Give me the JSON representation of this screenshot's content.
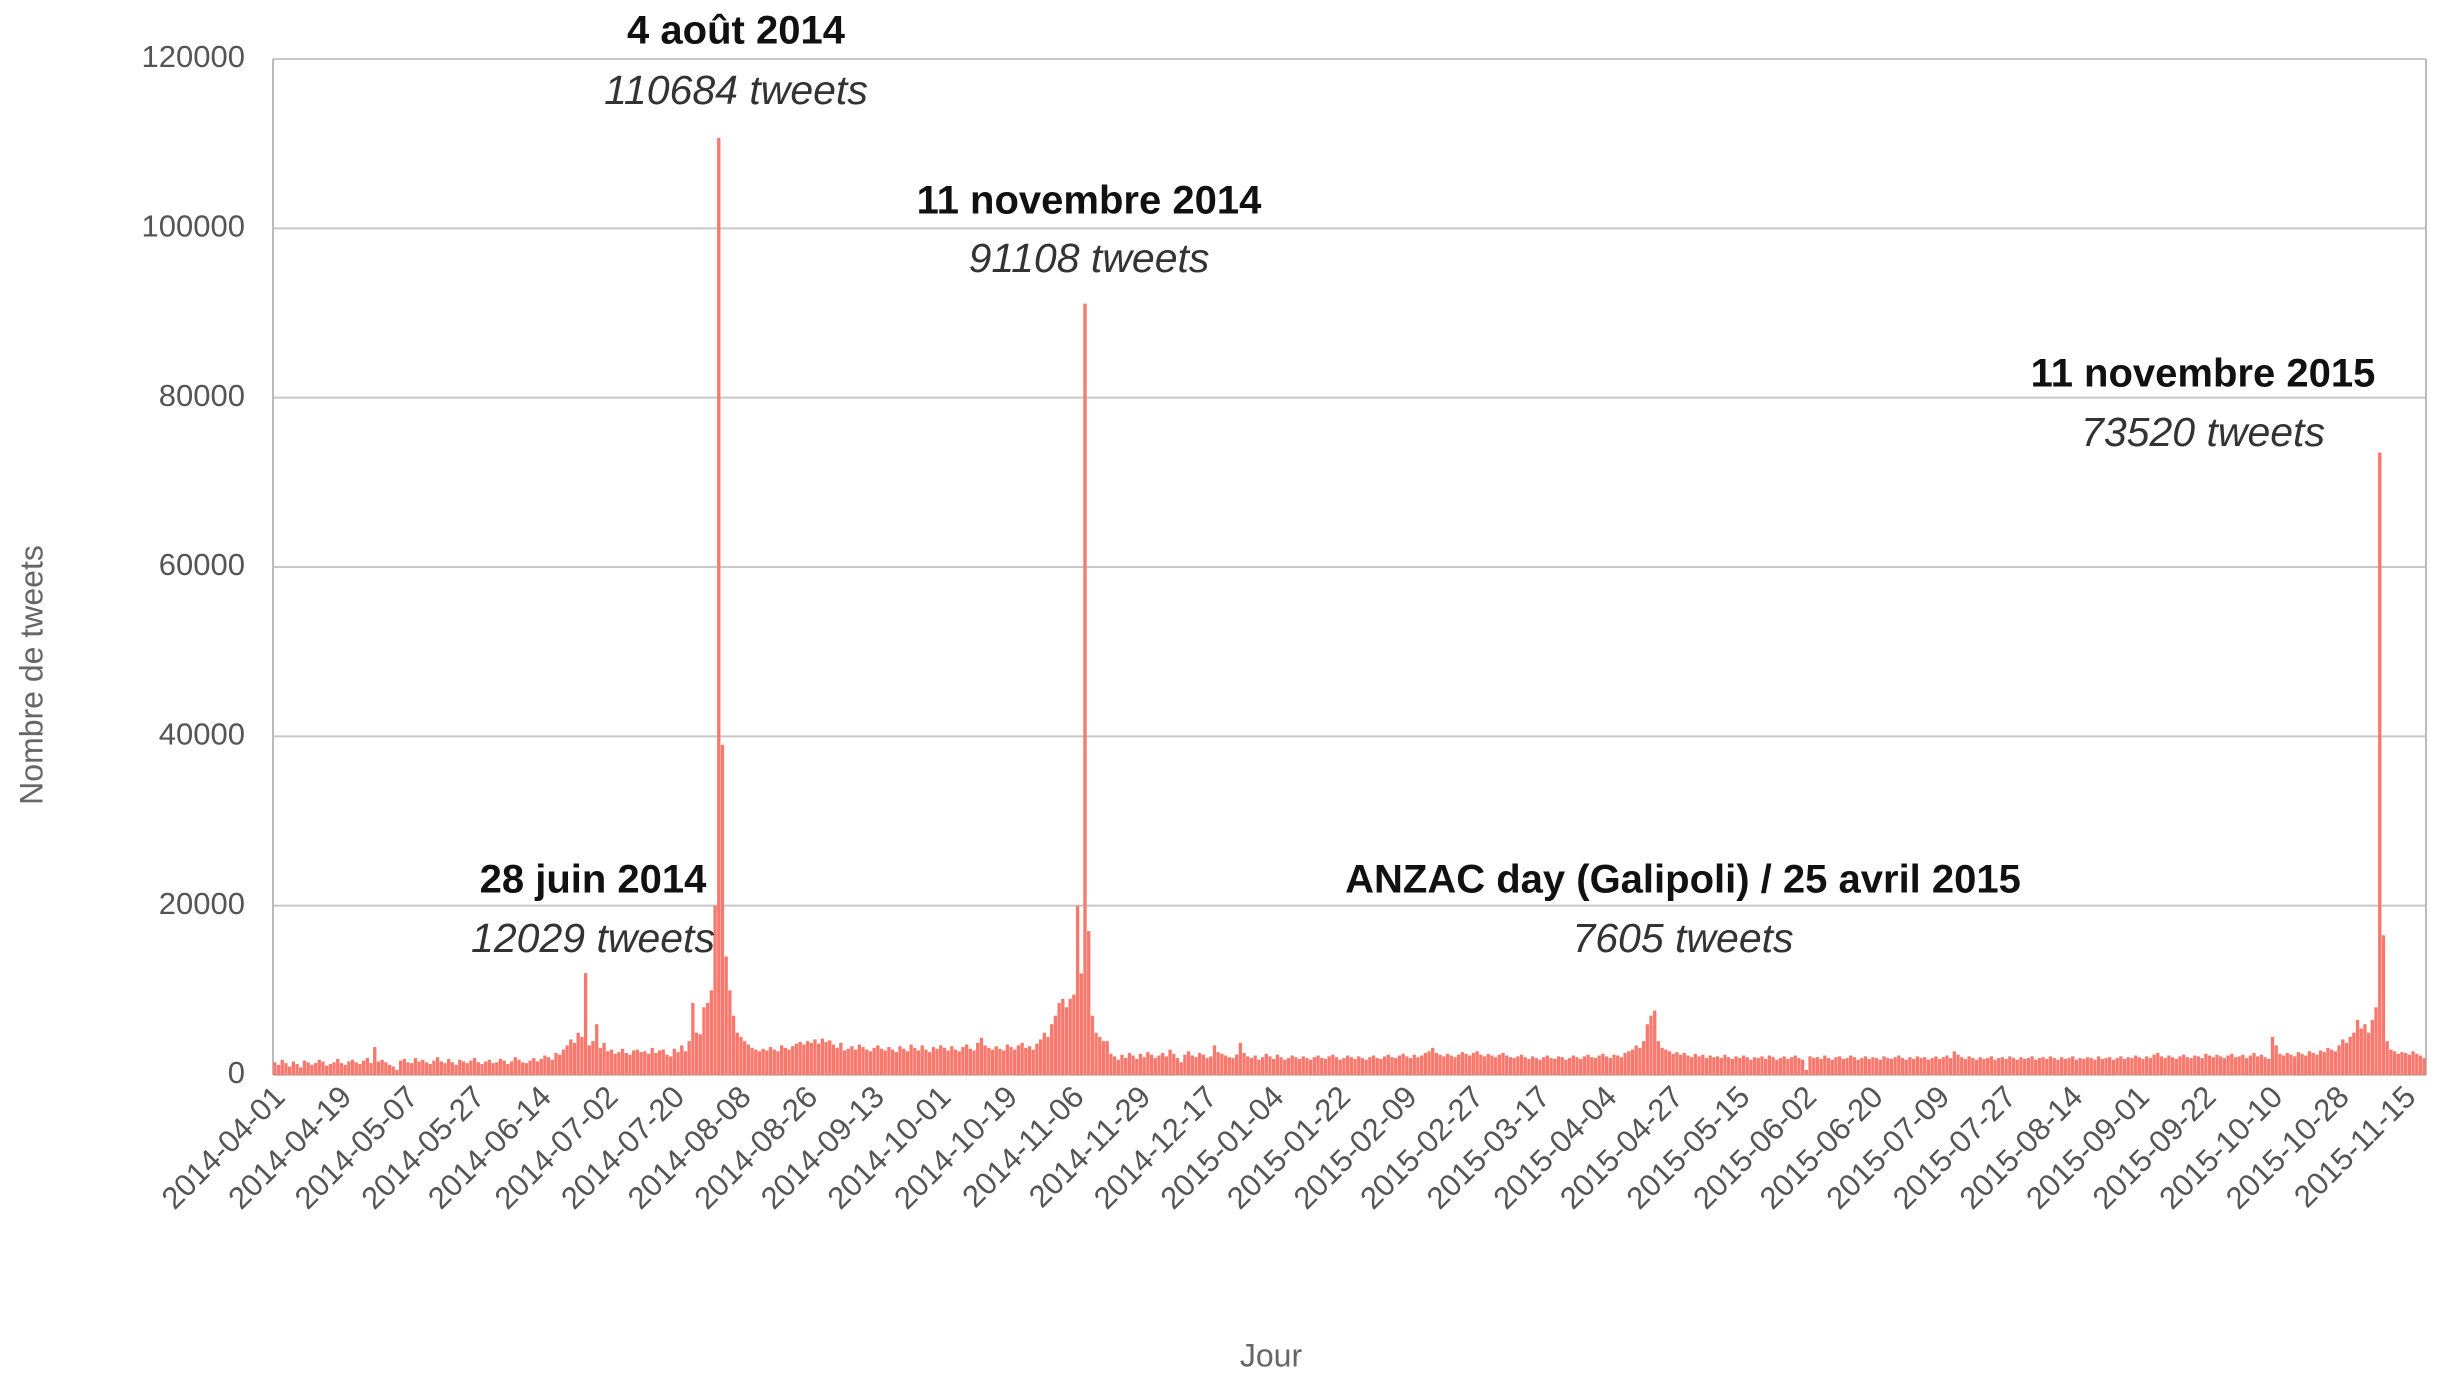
{
  "chart_data": {
    "type": "bar",
    "xlabel": "Jour",
    "ylabel": "Nombre de tweets",
    "color": "#f7796e",
    "grid": true,
    "ylim": [
      0,
      120000
    ],
    "yticks": [
      0,
      20000,
      40000,
      60000,
      80000,
      100000,
      120000
    ],
    "annotations": [
      {
        "title": "4 août 2014",
        "text": "110684 tweets"
      },
      {
        "title": "11 novembre 2014",
        "text": "91108 tweets"
      },
      {
        "title": "11 novembre 2015",
        "text": "73520 tweets"
      },
      {
        "title": "28 juin 2014",
        "text": "12029 tweets"
      },
      {
        "title": "ANZAC day (Galipoli) / 25 avril 2015",
        "text": "7605 tweets"
      }
    ],
    "categories": [
      "2014-04-01",
      null,
      null,
      null,
      null,
      null,
      null,
      null,
      null,
      null,
      null,
      null,
      null,
      null,
      null,
      null,
      null,
      null,
      "2014-04-19",
      null,
      null,
      null,
      null,
      null,
      null,
      null,
      null,
      null,
      null,
      null,
      null,
      null,
      null,
      null,
      null,
      null,
      "2014-05-07",
      null,
      null,
      null,
      null,
      null,
      null,
      null,
      null,
      null,
      null,
      null,
      null,
      null,
      null,
      null,
      null,
      null,
      "2014-05-27",
      null,
      null,
      null,
      null,
      null,
      null,
      null,
      null,
      null,
      null,
      null,
      null,
      null,
      null,
      null,
      null,
      null,
      "2014-06-14",
      null,
      null,
      null,
      null,
      null,
      null,
      null,
      null,
      null,
      null,
      null,
      null,
      null,
      null,
      null,
      null,
      null,
      "2014-07-02",
      null,
      null,
      null,
      null,
      null,
      null,
      null,
      null,
      null,
      null,
      null,
      null,
      null,
      null,
      null,
      null,
      null,
      "2014-07-20",
      null,
      null,
      null,
      null,
      null,
      null,
      null,
      null,
      null,
      null,
      null,
      null,
      null,
      null,
      null,
      null,
      null,
      "2014-08-08",
      null,
      null,
      null,
      null,
      null,
      null,
      null,
      null,
      null,
      null,
      null,
      null,
      null,
      null,
      null,
      null,
      null,
      "2014-08-26",
      null,
      null,
      null,
      null,
      null,
      null,
      null,
      null,
      null,
      null,
      null,
      null,
      null,
      null,
      null,
      null,
      null,
      "2014-09-13",
      null,
      null,
      null,
      null,
      null,
      null,
      null,
      null,
      null,
      null,
      null,
      null,
      null,
      null,
      null,
      null,
      null,
      "2014-10-01",
      null,
      null,
      null,
      null,
      null,
      null,
      null,
      null,
      null,
      null,
      null,
      null,
      null,
      null,
      null,
      null,
      null,
      "2014-10-19",
      null,
      null,
      null,
      null,
      null,
      null,
      null,
      null,
      null,
      null,
      null,
      null,
      null,
      null,
      null,
      null,
      null,
      "2014-11-06",
      null,
      null,
      null,
      null,
      null,
      null,
      null,
      null,
      null,
      null,
      null,
      null,
      null,
      null,
      null,
      null,
      null,
      "2014-11-29",
      null,
      null,
      null,
      null,
      null,
      null,
      null,
      null,
      null,
      null,
      null,
      null,
      null,
      null,
      null,
      null,
      null,
      "2014-12-17",
      null,
      null,
      null,
      null,
      null,
      null,
      null,
      null,
      null,
      null,
      null,
      null,
      null,
      null,
      null,
      null,
      null,
      "2015-01-04",
      null,
      null,
      null,
      null,
      null,
      null,
      null,
      null,
      null,
      null,
      null,
      null,
      null,
      null,
      null,
      null,
      null,
      "2015-01-22",
      null,
      null,
      null,
      null,
      null,
      null,
      null,
      null,
      null,
      null,
      null,
      null,
      null,
      null,
      null,
      null,
      null,
      "2015-02-09",
      null,
      null,
      null,
      null,
      null,
      null,
      null,
      null,
      null,
      null,
      null,
      null,
      null,
      null,
      null,
      null,
      null,
      "2015-02-27",
      null,
      null,
      null,
      null,
      null,
      null,
      null,
      null,
      null,
      null,
      null,
      null,
      null,
      null,
      null,
      null,
      null,
      "2015-03-17",
      null,
      null,
      null,
      null,
      null,
      null,
      null,
      null,
      null,
      null,
      null,
      null,
      null,
      null,
      null,
      null,
      null,
      "2015-04-04",
      null,
      null,
      null,
      null,
      null,
      null,
      null,
      null,
      null,
      null,
      null,
      null,
      null,
      null,
      null,
      null,
      null,
      "2015-04-27",
      null,
      null,
      null,
      null,
      null,
      null,
      null,
      null,
      null,
      null,
      null,
      null,
      null,
      null,
      null,
      null,
      null,
      "2015-05-15",
      null,
      null,
      null,
      null,
      null,
      null,
      null,
      null,
      null,
      null,
      null,
      null,
      null,
      null,
      null,
      null,
      null,
      "2015-06-02",
      null,
      null,
      null,
      null,
      null,
      null,
      null,
      null,
      null,
      null,
      null,
      null,
      null,
      null,
      null,
      null,
      null,
      "2015-06-20",
      null,
      null,
      null,
      null,
      null,
      null,
      null,
      null,
      null,
      null,
      null,
      null,
      null,
      null,
      null,
      null,
      null,
      "2015-07-09",
      null,
      null,
      null,
      null,
      null,
      null,
      null,
      null,
      null,
      null,
      null,
      null,
      null,
      null,
      null,
      null,
      null,
      "2015-07-27",
      null,
      null,
      null,
      null,
      null,
      null,
      null,
      null,
      null,
      null,
      null,
      null,
      null,
      null,
      null,
      null,
      null,
      "2015-08-14",
      null,
      null,
      null,
      null,
      null,
      null,
      null,
      null,
      null,
      null,
      null,
      null,
      null,
      null,
      null,
      null,
      null,
      "2015-09-01",
      null,
      null,
      null,
      null,
      null,
      null,
      null,
      null,
      null,
      null,
      null,
      null,
      null,
      null,
      null,
      null,
      null,
      "2015-09-22",
      null,
      null,
      null,
      null,
      null,
      null,
      null,
      null,
      null,
      null,
      null,
      null,
      null,
      null,
      null,
      null,
      null,
      "2015-10-10",
      null,
      null,
      null,
      null,
      null,
      null,
      null,
      null,
      null,
      null,
      null,
      null,
      null,
      null,
      null,
      null,
      null,
      "2015-10-28",
      null,
      null,
      null,
      null,
      null,
      null,
      null,
      null,
      null,
      null,
      null,
      null,
      null,
      null,
      null,
      null,
      null,
      "2015-11-15",
      null,
      null,
      null,
      null,
      null
    ],
    "values": [
      1500,
      1200,
      1800,
      1400,
      1000,
      1600,
      1300,
      900,
      1700,
      1500,
      1200,
      1400,
      1800,
      1600,
      1100,
      1300,
      1500,
      1900,
      1400,
      1200,
      1600,
      1800,
      1500,
      1300,
      1700,
      2000,
      1400,
      3300,
      1600,
      1800,
      1500,
      1200,
      1000,
      600,
      1700,
      1900,
      1500,
      1400,
      2000,
      1600,
      1800,
      1500,
      1300,
      1700,
      2100,
      1600,
      1400,
      1900,
      1500,
      1200,
      1800,
      1600,
      1400,
      1700,
      2000,
      1500,
      1300,
      1600,
      1800,
      1400,
      1500,
      1900,
      1700,
      1300,
      1600,
      2100,
      1800,
      1500,
      1400,
      1700,
      2000,
      1600,
      1900,
      2300,
      2100,
      1800,
      2600,
      2400,
      3000,
      3500,
      4200,
      3800,
      5000,
      4500,
      12029,
      3500,
      4000,
      6000,
      3200,
      3800,
      2800,
      3000,
      2500,
      2700,
      3100,
      2600,
      2400,
      2900,
      3000,
      2700,
      2800,
      2500,
      3200,
      2600,
      2900,
      3000,
      2400,
      2200,
      3100,
      2700,
      3500,
      2800,
      4000,
      8500,
      5000,
      4800,
      8000,
      8500,
      10000,
      20000,
      110684,
      39000,
      14000,
      10000,
      7000,
      5000,
      4500,
      4000,
      3600,
      3200,
      3000,
      2800,
      3100,
      2900,
      3300,
      3000,
      2800,
      3500,
      3200,
      3000,
      3400,
      3700,
      3900,
      3600,
      4000,
      3800,
      4200,
      3700,
      4300,
      3900,
      4100,
      3600,
      3200,
      3800,
      2900,
      3100,
      3400,
      3000,
      3600,
      3300,
      3000,
      2800,
      3200,
      3500,
      3100,
      2900,
      3300,
      3000,
      2700,
      3400,
      3100,
      2800,
      3600,
      3200,
      2900,
      3500,
      3000,
      2700,
      3300,
      3100,
      3500,
      3200,
      2900,
      3400,
      3000,
      2800,
      3300,
      3600,
      3100,
      2900,
      3800,
      4400,
      3500,
      3200,
      3000,
      3400,
      3100,
      2900,
      3600,
      3300,
      3000,
      3500,
      3800,
      3200,
      3400,
      3000,
      3700,
      4200,
      5000,
      4500,
      6000,
      7000,
      8500,
      9000,
      8000,
      9000,
      9500,
      20000,
      12000,
      91108,
      17000,
      7000,
      5000,
      4500,
      4000,
      4000,
      2500,
      2200,
      1800,
      2400,
      2000,
      2600,
      2300,
      1900,
      2500,
      2100,
      2700,
      2400,
      2000,
      2300,
      2600,
      2200,
      3000,
      2500,
      2000,
      1500,
      2400,
      2800,
      2300,
      2100,
      2600,
      2400,
      2000,
      2200,
      3500,
      2700,
      2500,
      2300,
      2100,
      2000,
      2400,
      3800,
      2600,
      2200,
      2000,
      2300,
      1800,
      2100,
      2500,
      2200,
      1900,
      2400,
      2100,
      1800,
      2000,
      2300,
      2100,
      1900,
      2200,
      2000,
      1800,
      2100,
      2300,
      2000,
      1900,
      2200,
      2400,
      2100,
      1800,
      2000,
      2300,
      2100,
      1900,
      2200,
      2000,
      1800,
      2100,
      2300,
      2000,
      1900,
      2200,
      2400,
      2100,
      2000,
      2300,
      2500,
      2200,
      2000,
      2400,
      2100,
      2300,
      2600,
      2800,
      3200,
      2600,
      2400,
      2200,
      2500,
      2300,
      2100,
      2400,
      2700,
      2500,
      2300,
      2600,
      2800,
      2400,
      2200,
      2500,
      2300,
      2100,
      2400,
      2600,
      2300,
      2100,
      2000,
      2200,
      2400,
      2100,
      1900,
      2200,
      2000,
      1800,
      2100,
      2300,
      2000,
      1900,
      2200,
      2100,
      1800,
      2000,
      2300,
      2100,
      1900,
      2200,
      2400,
      2100,
      2000,
      2300,
      2500,
      2200,
      2000,
      2400,
      2300,
      2100,
      2600,
      2800,
      3000,
      3500,
      3200,
      4000,
      6000,
      7000,
      7605,
      4000,
      3200,
      3000,
      2800,
      2500,
      2700,
      2400,
      2600,
      2300,
      2100,
      2500,
      2200,
      2400,
      2000,
      2300,
      2100,
      2200,
      2000,
      2400,
      2100,
      1900,
      2200,
      2000,
      2300,
      2100,
      1800,
      2100,
      2000,
      2200,
      1900,
      2300,
      2100,
      1800,
      2000,
      2200,
      1900,
      2100,
      2300,
      2000,
      1800,
      600,
      2200,
      2000,
      2100,
      1900,
      2300,
      2000,
      1800,
      2100,
      2200,
      1900,
      2000,
      2300,
      2100,
      1800,
      2000,
      2200,
      1900,
      2100,
      2000,
      1800,
      2200,
      2000,
      1900,
      2100,
      2300,
      2000,
      1800,
      2100,
      1900,
      2200,
      2000,
      2100,
      1800,
      2000,
      2200,
      1900,
      2100,
      2300,
      2000,
      2800,
      2400,
      2100,
      1900,
      2200,
      2000,
      1800,
      2100,
      1900,
      2000,
      2200,
      1800,
      2000,
      2100,
      1900,
      2200,
      2000,
      1800,
      2100,
      1900,
      2000,
      2200,
      1800,
      2000,
      2100,
      1900,
      2200,
      2000,
      1800,
      2100,
      1900,
      2000,
      2200,
      1800,
      2000,
      1900,
      2100,
      2000,
      1800,
      2200,
      1900,
      2000,
      2100,
      1800,
      2000,
      2200,
      1900,
      2100,
      2000,
      2300,
      2100,
      1900,
      2200,
      2000,
      2400,
      2600,
      2200,
      2000,
      2300,
      2100,
      1900,
      2200,
      2400,
      2100,
      2000,
      2300,
      2200,
      2000,
      2500,
      2300,
      2100,
      2400,
      2200,
      2000,
      2300,
      2500,
      2100,
      2200,
      2400,
      2000,
      2300,
      2600,
      2200,
      2400,
      2100,
      1900,
      4500,
      3500,
      2500,
      2300,
      2600,
      2400,
      2200,
      2700,
      2500,
      2300,
      2800,
      2600,
      2400,
      2900,
      2700,
      3200,
      3000,
      2800,
      3500,
      4200,
      3800,
      4500,
      5000,
      6500,
      5500,
      6000,
      5000,
      6500,
      8000,
      73520,
      16500,
      4000,
      3000,
      2800,
      2500,
      2700,
      2600,
      2400,
      2800,
      2500,
      2300,
      2000
    ]
  }
}
